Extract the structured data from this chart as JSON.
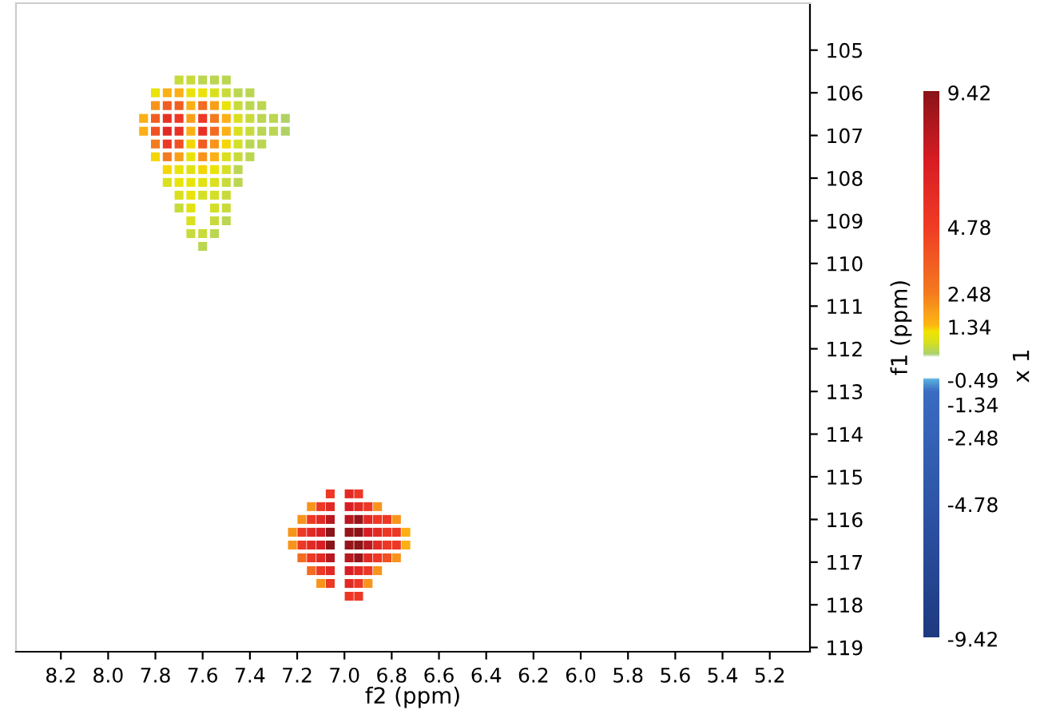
{
  "chart_data": {
    "type": "scatter",
    "xlabel": "f2 (ppm)",
    "ylabel": "f1 (ppm)",
    "clabel": "x 1",
    "xlim": [
      8.39,
      5.03
    ],
    "ylim": [
      119.1,
      103.9
    ],
    "xticks": [
      8.2,
      {
        "value": 8,
        "label": "8.0"
      },
      7.8,
      7.6,
      7.4,
      7.2,
      {
        "value": 7,
        "label": "7.0"
      },
      6.8,
      6.6,
      6.4,
      6.2,
      {
        "value": 6,
        "label": "6.0"
      },
      5.8,
      5.6,
      5.4,
      5.2
    ],
    "yticks": [
      105,
      106,
      107,
      108,
      109,
      110,
      111,
      112,
      113,
      114,
      115,
      116,
      117,
      118,
      119
    ],
    "clim": [
      -9.42,
      9.42
    ],
    "cticks": [
      9.42,
      4.78,
      2.48,
      1.34,
      -0.49,
      -1.34,
      -2.48,
      -4.78,
      -9.42
    ],
    "marker": "square",
    "grid": false,
    "legend": false,
    "series": [
      {
        "x": [
          7.7,
          7.65,
          7.6,
          7.55,
          7.5,
          7.8,
          7.75,
          7.7,
          7.65,
          7.6,
          7.55,
          7.5,
          7.45,
          7.4,
          7.8,
          7.75,
          7.7,
          7.65,
          7.6,
          7.55,
          7.5,
          7.45,
          7.4,
          7.35,
          7.85,
          7.8,
          7.75,
          7.7,
          7.65,
          7.6,
          7.55,
          7.5,
          7.45,
          7.4,
          7.35,
          7.3,
          7.25,
          7.85,
          7.8,
          7.75,
          7.7,
          7.65,
          7.6,
          7.55,
          7.5,
          7.45,
          7.4,
          7.35,
          7.3,
          7.25,
          7.8,
          7.75,
          7.7,
          7.65,
          7.6,
          7.55,
          7.5,
          7.45,
          7.4,
          7.35,
          7.8,
          7.75,
          7.7,
          7.65,
          7.6,
          7.55,
          7.5,
          7.45,
          7.4,
          7.75,
          7.7,
          7.65,
          7.6,
          7.55,
          7.5,
          7.45,
          7.75,
          7.7,
          7.65,
          7.6,
          7.55,
          7.5,
          7.45,
          7.7,
          7.65,
          7.6,
          7.55,
          7.5,
          7.7,
          7.65,
          7.55,
          7.5,
          7.65,
          7.55,
          7.5,
          7.65,
          7.6,
          7.55,
          7.6,
          7.06,
          6.98,
          6.94,
          7.14,
          7.1,
          7.06,
          6.98,
          6.94,
          6.9,
          6.86,
          7.18,
          7.14,
          7.1,
          7.06,
          6.98,
          6.94,
          6.9,
          6.86,
          6.82,
          6.78,
          7.22,
          7.18,
          7.14,
          7.1,
          7.06,
          6.98,
          6.94,
          6.9,
          6.86,
          6.82,
          6.78,
          6.74,
          7.22,
          7.18,
          7.14,
          7.1,
          7.06,
          6.98,
          6.94,
          6.9,
          6.86,
          6.82,
          6.78,
          6.74,
          7.18,
          7.14,
          7.1,
          7.06,
          6.98,
          6.94,
          6.9,
          6.86,
          6.82,
          6.78,
          7.14,
          7.1,
          7.06,
          6.98,
          6.94,
          6.9,
          6.86,
          7.1,
          7.06,
          6.98,
          6.94,
          6.9,
          6.98,
          6.94
        ],
        "values": [
          105.7,
          105.7,
          105.7,
          105.7,
          105.7,
          106.0,
          106.0,
          106.0,
          106.0,
          106.0,
          106.0,
          106.0,
          106.0,
          106.0,
          106.3,
          106.3,
          106.3,
          106.3,
          106.3,
          106.3,
          106.3,
          106.3,
          106.3,
          106.3,
          106.6,
          106.6,
          106.6,
          106.6,
          106.6,
          106.6,
          106.6,
          106.6,
          106.6,
          106.6,
          106.6,
          106.6,
          106.6,
          106.9,
          106.9,
          106.9,
          106.9,
          106.9,
          106.9,
          106.9,
          106.9,
          106.9,
          106.9,
          106.9,
          106.9,
          106.9,
          107.2,
          107.2,
          107.2,
          107.2,
          107.2,
          107.2,
          107.2,
          107.2,
          107.2,
          107.2,
          107.5,
          107.5,
          107.5,
          107.5,
          107.5,
          107.5,
          107.5,
          107.5,
          107.5,
          107.8,
          107.8,
          107.8,
          107.8,
          107.8,
          107.8,
          107.8,
          108.1,
          108.1,
          108.1,
          108.1,
          108.1,
          108.1,
          108.1,
          108.4,
          108.4,
          108.4,
          108.4,
          108.4,
          108.7,
          108.7,
          108.7,
          108.7,
          109.0,
          109.0,
          109.0,
          109.3,
          109.3,
          109.3,
          109.6,
          115.4,
          115.4,
          115.4,
          115.7,
          115.7,
          115.7,
          115.7,
          115.7,
          115.7,
          115.7,
          116.0,
          116.0,
          116.0,
          116.0,
          116.0,
          116.0,
          116.0,
          116.0,
          116.0,
          116.0,
          116.3,
          116.3,
          116.3,
          116.3,
          116.3,
          116.3,
          116.3,
          116.3,
          116.3,
          116.3,
          116.3,
          116.3,
          116.6,
          116.6,
          116.6,
          116.6,
          116.6,
          116.6,
          116.6,
          116.6,
          116.6,
          116.6,
          116.6,
          116.6,
          116.9,
          116.9,
          116.9,
          116.9,
          116.9,
          116.9,
          116.9,
          116.9,
          116.9,
          116.9,
          117.2,
          117.2,
          117.2,
          117.2,
          117.2,
          117.2,
          117.2,
          117.5,
          117.5,
          117.5,
          117.5,
          117.5,
          117.8,
          117.8
        ],
        "cvalues": [
          0.6,
          0.6,
          0.5,
          0.5,
          0.5,
          1.0,
          1.5,
          1.5,
          1.0,
          1.0,
          0.8,
          0.6,
          0.5,
          0.5,
          2.0,
          3.5,
          3.5,
          1.5,
          3.0,
          1.8,
          1.0,
          0.6,
          0.5,
          0.5,
          1.5,
          3.5,
          5.5,
          5.0,
          1.8,
          5.0,
          2.5,
          1.5,
          0.8,
          0.6,
          0.5,
          0.5,
          0.4,
          1.5,
          4.0,
          6.0,
          5.5,
          1.5,
          5.5,
          3.0,
          1.5,
          0.8,
          0.6,
          0.5,
          0.5,
          0.4,
          2.5,
          5.0,
          4.0,
          1.2,
          3.5,
          2.0,
          1.2,
          0.7,
          0.5,
          0.5,
          1.2,
          2.5,
          1.8,
          1.0,
          2.0,
          1.5,
          0.8,
          0.6,
          0.5,
          1.2,
          1.0,
          0.9,
          1.2,
          1.0,
          0.7,
          0.5,
          0.8,
          1.0,
          1.0,
          0.9,
          0.8,
          0.6,
          0.5,
          0.8,
          1.0,
          0.7,
          0.7,
          0.6,
          0.6,
          0.9,
          0.7,
          0.6,
          0.8,
          0.6,
          0.5,
          0.6,
          0.6,
          0.5,
          0.5,
          5.0,
          6.0,
          5.0,
          2.0,
          5.0,
          6.0,
          7.0,
          6.0,
          5.0,
          2.0,
          2.0,
          5.0,
          6.0,
          8.0,
          8.0,
          9.0,
          6.0,
          5.0,
          5.0,
          2.0,
          2.0,
          5.0,
          6.0,
          7.0,
          9.42,
          9.0,
          9.42,
          7.0,
          6.0,
          5.0,
          5.0,
          1.5,
          2.0,
          5.0,
          6.0,
          7.0,
          9.42,
          9.0,
          9.42,
          8.0,
          6.0,
          5.0,
          5.0,
          1.5,
          3.0,
          5.0,
          6.0,
          8.0,
          8.0,
          9.0,
          6.0,
          5.0,
          4.0,
          2.0,
          3.0,
          5.0,
          6.0,
          7.0,
          6.0,
          5.0,
          2.0,
          2.0,
          5.0,
          6.0,
          5.0,
          2.0,
          5.0,
          5.0
        ]
      }
    ]
  }
}
